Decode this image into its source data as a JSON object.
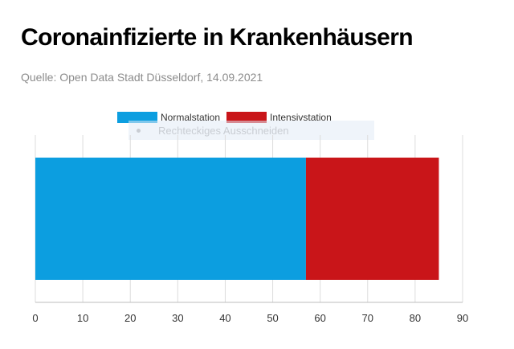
{
  "header": {
    "title": "Coronainfizierte in Krankenhäusern",
    "subtitle": "Quelle: Open Data Stadt Düsseldorf, 14.09.2021"
  },
  "overlay": {
    "text": "Rechteckiges Ausschneiden"
  },
  "chart_data": {
    "type": "bar",
    "orientation": "horizontal",
    "stacked": true,
    "categories": [
      ""
    ],
    "series": [
      {
        "name": "Normalstation",
        "values": [
          57
        ],
        "color": "#0c9ee0"
      },
      {
        "name": "Intensivstation",
        "values": [
          28
        ],
        "color": "#c91519"
      }
    ],
    "xlim": [
      0,
      90
    ],
    "xticks": [
      0,
      10,
      20,
      30,
      40,
      50,
      60,
      70,
      80,
      90
    ],
    "grid": true,
    "legend_position": "top"
  }
}
